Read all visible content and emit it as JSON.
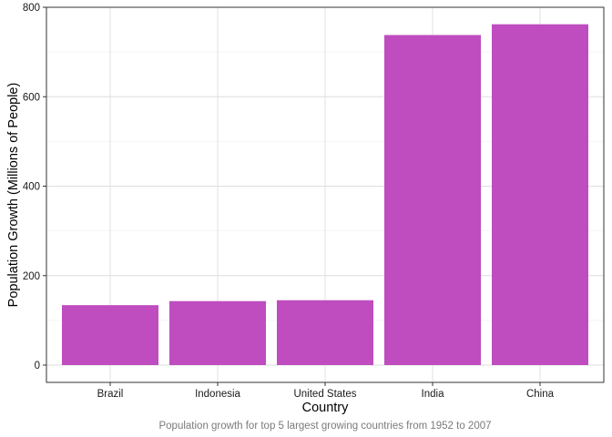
{
  "chart_data": {
    "type": "bar",
    "categories": [
      "Brazil",
      "Indonesia",
      "United States",
      "India",
      "China"
    ],
    "values": [
      134,
      143,
      145,
      738,
      762
    ],
    "xlabel": "Country",
    "ylabel": "Population Growth (Millions of People)",
    "caption": "Population growth for top 5 largest growing countries from 1952 to 2007",
    "ylim": [
      0,
      800
    ],
    "yticks": [
      0,
      200,
      400,
      600,
      800
    ],
    "grid": true,
    "legend": "none",
    "colors": {
      "bar": "#bf4dbf",
      "grid": "#dedede",
      "border": "#333333",
      "background": "#ffffff"
    }
  }
}
